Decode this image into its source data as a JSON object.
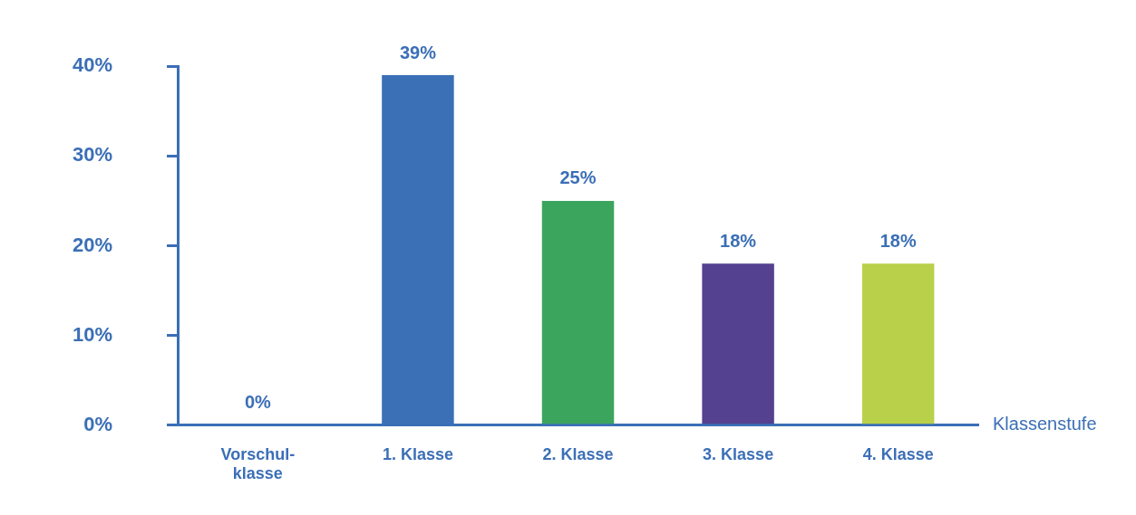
{
  "chart_data": {
    "type": "bar",
    "x_label": "Klassenstufe",
    "categories": [
      "Vorschul-klasse",
      "1. Klasse",
      "2. Klasse",
      "3. Klasse",
      "4. Klasse"
    ],
    "values": [
      0,
      39,
      25,
      18,
      18
    ],
    "value_labels": [
      "0%",
      "39%",
      "25%",
      "18%",
      "18%"
    ],
    "data_labels": true,
    "colors": [
      "#3ba55d",
      "#3b6fb6",
      "#3ba55d",
      "#54418f",
      "#b9d04a"
    ],
    "ylim": [
      0,
      40
    ],
    "yticks": [
      {
        "value": 0,
        "label": "0%"
      },
      {
        "value": 10,
        "label": "10%"
      },
      {
        "value": 20,
        "label": "20%"
      },
      {
        "value": 30,
        "label": "30%"
      },
      {
        "value": 40,
        "label": "40%"
      }
    ],
    "grid": false
  }
}
